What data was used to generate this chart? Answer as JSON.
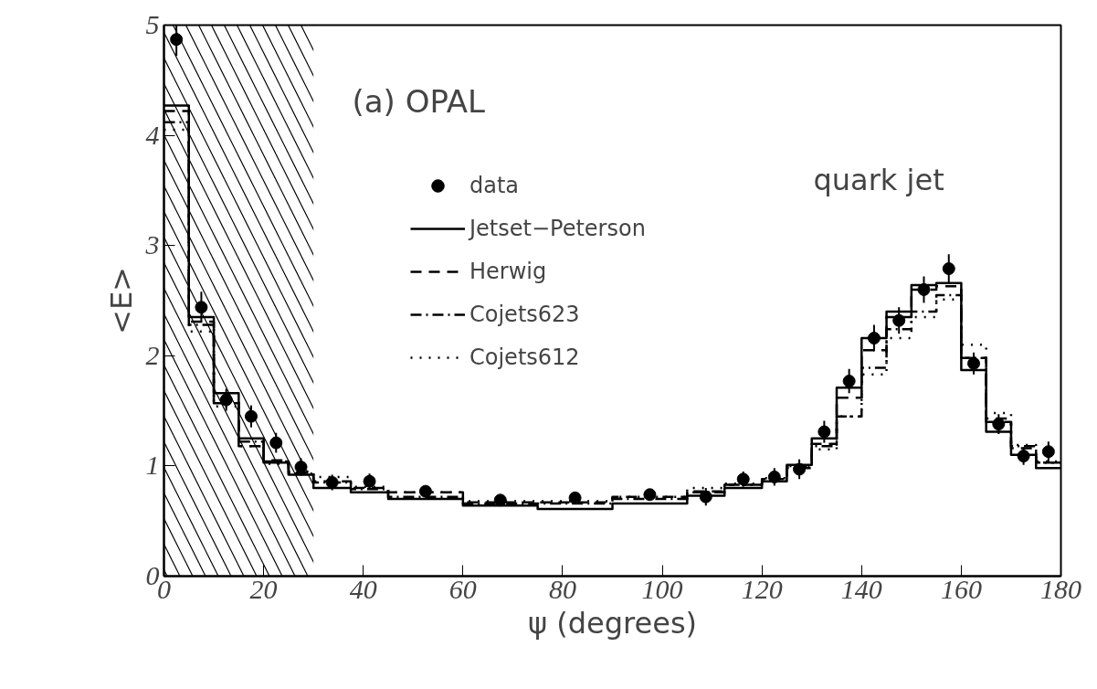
{
  "chart_data": {
    "type": "step",
    "xlabel": "ψ (degrees)",
    "ylabel": "<E>",
    "annotations": [
      "(a)    OPAL",
      "quark jet"
    ],
    "x": [
      0,
      5,
      10,
      15,
      20,
      25,
      30,
      37.5,
      45,
      60,
      75,
      90,
      105,
      112.5,
      120,
      125,
      130,
      135,
      140,
      145,
      150,
      155,
      160,
      165,
      170,
      175,
      180
    ],
    "series": [
      {
        "name": "data",
        "type": "scatter",
        "color": "#000000",
        "marker": "circle",
        "x": [
          2.5,
          7.5,
          12.5,
          17.5,
          22.5,
          27.5,
          33.75,
          41.25,
          52.5,
          67.5,
          82.5,
          97.5,
          108.75,
          116.25,
          122.5,
          127.5,
          132.5,
          137.5,
          142.5,
          147.5,
          152.5,
          157.5,
          162.5,
          167.5,
          172.5,
          177.5
        ],
        "values": [
          4.87,
          2.44,
          1.6,
          1.45,
          1.21,
          0.99,
          0.85,
          0.86,
          0.77,
          0.69,
          0.71,
          0.74,
          0.72,
          0.88,
          0.9,
          0.97,
          1.31,
          1.77,
          2.16,
          2.32,
          2.6,
          2.79,
          1.93,
          1.38,
          1.09,
          1.13
        ],
        "errors": [
          0.15,
          0.14,
          0.1,
          0.1,
          0.09,
          0.08,
          0.07,
          0.07,
          0.05,
          0.05,
          0.05,
          0.05,
          0.08,
          0.07,
          0.08,
          0.09,
          0.1,
          0.11,
          0.12,
          0.12,
          0.12,
          0.13,
          0.1,
          0.09,
          0.08,
          0.09
        ]
      },
      {
        "name": "Jetset−Peterson",
        "line_style": "solid",
        "color": "#000000",
        "values": [
          4.27,
          2.35,
          1.66,
          1.25,
          1.03,
          0.92,
          0.8,
          0.76,
          0.7,
          0.64,
          0.61,
          0.66,
          0.73,
          0.8,
          0.86,
          1.01,
          1.25,
          1.71,
          2.16,
          2.4,
          2.64,
          2.66,
          1.87,
          1.31,
          1.1,
          0.98,
          0.98
        ]
      },
      {
        "name": "Herwig",
        "line_style": "dashed",
        "color": "#000000",
        "values": [
          4.22,
          2.31,
          1.59,
          1.18,
          1.05,
          0.94,
          0.86,
          0.8,
          0.76,
          0.67,
          0.67,
          0.72,
          0.77,
          0.83,
          0.88,
          1.0,
          1.2,
          1.62,
          2.05,
          2.35,
          2.6,
          2.63,
          1.98,
          1.43,
          1.16,
          1.03,
          1.03
        ]
      },
      {
        "name": "Cojets623",
        "line_style": "dashdot",
        "color": "#000000",
        "values": [
          4.12,
          2.28,
          1.57,
          1.22,
          1.04,
          0.93,
          0.85,
          0.79,
          0.72,
          0.66,
          0.66,
          0.7,
          0.76,
          0.83,
          0.86,
          0.98,
          1.18,
          1.45,
          1.89,
          2.24,
          2.4,
          2.55,
          1.98,
          1.4,
          1.18,
          1.03,
          1.03
        ]
      },
      {
        "name": "Cojets612",
        "line_style": "dotted",
        "color": "#000000",
        "values": [
          4.05,
          2.22,
          1.54,
          1.18,
          1.02,
          0.95,
          0.9,
          0.81,
          0.76,
          0.68,
          0.68,
          0.72,
          0.8,
          0.84,
          0.89,
          1.0,
          1.15,
          1.45,
          1.83,
          2.16,
          2.35,
          2.51,
          2.1,
          1.48,
          1.19,
          1.04,
          1.04
        ]
      }
    ],
    "bands": [
      {
        "axis": "x",
        "from": 0,
        "to": 30,
        "color": "#000000"
      }
    ],
    "xlim": [
      0,
      180
    ],
    "ylim": [
      0,
      5
    ],
    "xticks": [
      0,
      20,
      40,
      60,
      80,
      100,
      120,
      140,
      160,
      180
    ],
    "yticks": [
      0,
      1,
      2,
      3,
      4,
      5
    ],
    "grid": false,
    "legend": "top"
  }
}
